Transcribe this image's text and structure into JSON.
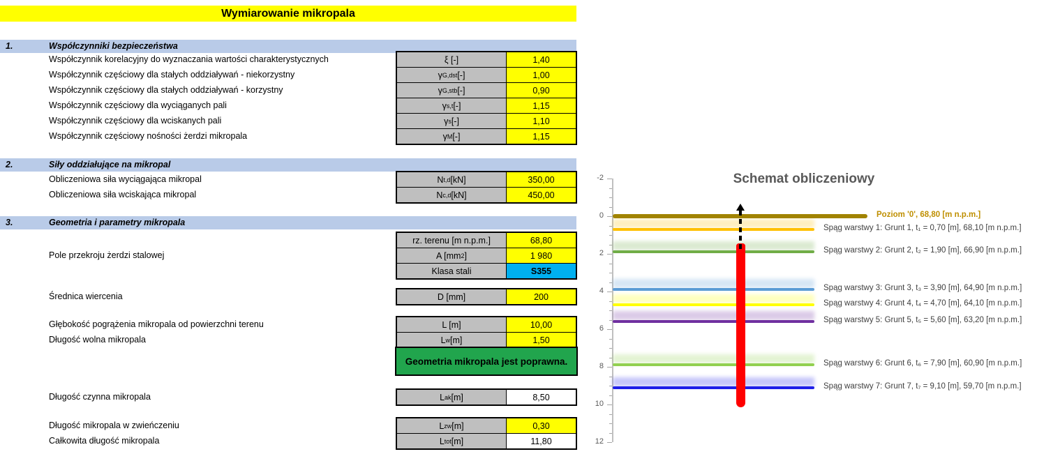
{
  "page_title": "Wymiarowanie mikropala",
  "sections": [
    {
      "num": "1.",
      "title": "Współczynniki bezpieczeństwa"
    },
    {
      "num": "2.",
      "title": "Siły oddziałujące na mikropal"
    },
    {
      "num": "3.",
      "title": "Geometria i parametry mikropala"
    }
  ],
  "tables": {
    "t1": {
      "name": "safety-factors-table",
      "rows": [
        {
          "label": "Współczynnik korelacyjny do wyznaczania wartości charakterystycznych",
          "param": [
            {
              "t": "ξ [-]"
            }
          ],
          "value": "1,40",
          "style": "input"
        },
        {
          "label": "Współczynnik częściowy dla stałych oddziaływań - niekorzystny",
          "param": [
            {
              "t": "γ"
            },
            {
              "sub": "G,dst"
            },
            {
              "t": " [-]"
            }
          ],
          "value": "1,00",
          "style": "input"
        },
        {
          "label": "Współczynnik częściowy dla stałych oddziaływań - korzystny",
          "param": [
            {
              "t": "γ"
            },
            {
              "sub": "G,stb"
            },
            {
              "t": " [-]"
            }
          ],
          "value": "0,90",
          "style": "input"
        },
        {
          "label": "Współczynnik częściowy dla wyciąganych pali",
          "param": [
            {
              "t": "γ"
            },
            {
              "sub": "s,t"
            },
            {
              "t": " [-]"
            }
          ],
          "value": "1,15",
          "style": "input"
        },
        {
          "label": "Współczynnik częściowy dla wciskanych pali",
          "param": [
            {
              "t": "γ"
            },
            {
              "sub": "s"
            },
            {
              "t": " [-]"
            }
          ],
          "value": "1,10",
          "style": "input"
        },
        {
          "label": "Współczynnik częściowy nośności żerdzi mikropala",
          "param": [
            {
              "t": "γ"
            },
            {
              "sub": "M"
            },
            {
              "t": " [-]"
            }
          ],
          "value": "1,15",
          "style": "input"
        }
      ]
    },
    "t2": {
      "name": "forces-table",
      "rows": [
        {
          "label": "Obliczeniowa siła wyciągająca mikropal",
          "param": [
            {
              "t": "N"
            },
            {
              "sub": "t,d"
            },
            {
              "t": " [kN]"
            }
          ],
          "value": "350,00",
          "style": "input"
        },
        {
          "label": "Obliczeniowa siła wciskająca mikropal",
          "param": [
            {
              "t": "N"
            },
            {
              "sub": "c,d"
            },
            {
              "t": " [kN]"
            }
          ],
          "value": "450,00",
          "style": "input"
        }
      ]
    },
    "t3": {
      "name": "geometry-table-1",
      "rows": [
        {
          "label": "",
          "param": [
            {
              "t": "rz. terenu [m n.p.m.]"
            }
          ],
          "value": "68,80",
          "style": "input"
        },
        {
          "label": "Pole przekroju żerdzi stalowej",
          "param": [
            {
              "t": "A [mm"
            },
            {
              "sup": "2"
            },
            {
              "t": "]"
            }
          ],
          "value": "1 980",
          "style": "input"
        },
        {
          "label": "",
          "param": [
            {
              "t": "Klasa stali"
            }
          ],
          "value": "S355",
          "style": "select"
        }
      ]
    },
    "t4": {
      "name": "drilling-diameter-table",
      "rows": [
        {
          "label": "Średnica wiercenia",
          "param": [
            {
              "t": "D [mm]"
            }
          ],
          "value": "200",
          "style": "input"
        }
      ]
    },
    "t5": {
      "name": "length-table",
      "rows": [
        {
          "label": "Głębokość pogrążenia mikropala od powierzchni terenu",
          "param": [
            {
              "t": "L [m]"
            }
          ],
          "value": "10,00",
          "style": "input"
        },
        {
          "label": "Długość wolna mikropala",
          "param": [
            {
              "t": "L"
            },
            {
              "sub": "w"
            },
            {
              "t": " [m]"
            }
          ],
          "value": "1,50",
          "style": "input"
        }
      ]
    },
    "t6": {
      "name": "active-length-table",
      "rows": [
        {
          "label": "Długość czynna mikropala",
          "param": [
            {
              "t": "L"
            },
            {
              "sub": "ak"
            },
            {
              "t": " [m]"
            }
          ],
          "value": "8,50",
          "style": "output"
        }
      ]
    },
    "t7": {
      "name": "total-length-table",
      "rows": [
        {
          "label": "Długość mikropala w zwieńczeniu",
          "param": [
            {
              "t": "L"
            },
            {
              "sub": "zw"
            },
            {
              "t": " [m]"
            }
          ],
          "value": "0,30",
          "style": "input"
        },
        {
          "label": "Całkowita długość mikropala",
          "param": [
            {
              "t": "L"
            },
            {
              "sub": "tot"
            },
            {
              "t": " [m]"
            }
          ],
          "value": "11,80",
          "style": "output"
        }
      ]
    }
  },
  "status_box": {
    "text": "Geometria mikropala jest poprawna.",
    "bg": "#21A54D"
  },
  "colors": {
    "input_bg": "#FFFF00",
    "select_bg": "#00B0F0",
    "param_bg": "#BFBFBF",
    "section_bg": "#B9CBE8",
    "title_bg": "#FFFF00",
    "status_bg": "#21A54D"
  },
  "chart_data": {
    "type": "line",
    "title": "Schemat obliczeniowy",
    "orientation": "depth-down",
    "y_axis": {
      "min": -2,
      "max": 12,
      "major_step": 2,
      "minor_step": 0.5,
      "tick_labels": [
        "-2",
        "0",
        "2",
        "4",
        "6",
        "8",
        "10",
        "12"
      ]
    },
    "ground_level": {
      "depth_m": 0,
      "elevation": "68,80",
      "label": "Poziom '0', 68,80 [m n.p.m.]",
      "color": "#A18300",
      "label_color": "#BF8F00"
    },
    "layers": [
      {
        "depth_m": 0.7,
        "color": "#FFC000",
        "label": "Spąg warstwy 1: Grunt 1, t₁ = 0,70 [m], 68,10 [m n.p.m.]"
      },
      {
        "depth_m": 1.9,
        "color": "#70AD47",
        "label": "Spąg warstwy 2: Grunt 2, t₂ = 1,90 [m], 66,90 [m n.p.m.]"
      },
      {
        "depth_m": 3.9,
        "color": "#5B9BD5",
        "label": "Spąg warstwy 3: Grunt 3, t₃ = 3,90 [m], 64,90 [m n.p.m.]"
      },
      {
        "depth_m": 4.7,
        "color": "#FFFF00",
        "label": "Spąg warstwy 4: Grunt 4, t₄ = 4,70 [m], 64,10 [m n.p.m.]"
      },
      {
        "depth_m": 5.6,
        "color": "#7030A0",
        "label": "Spąg warstwy 5: Grunt 5, t₅ = 5,60 [m], 63,20 [m n.p.m.]"
      },
      {
        "depth_m": 7.9,
        "color": "#92D050",
        "label": "Spąg warstwy 6: Grunt 6, t₆ = 7,90 [m], 60,90 [m n.p.m.]"
      },
      {
        "depth_m": 9.1,
        "color": "#1F1FE8",
        "label": "Spąg warstwy 7: Grunt 7, t₇ = 9,10 [m], 59,70 [m n.p.m.]"
      }
    ],
    "pile": {
      "color": "#FF0000",
      "top_depth_m": 1.5,
      "bottom_depth_m": 10.0
    },
    "load_arrow": {
      "color": "#000000",
      "direction": "up",
      "style": "dashed"
    }
  }
}
